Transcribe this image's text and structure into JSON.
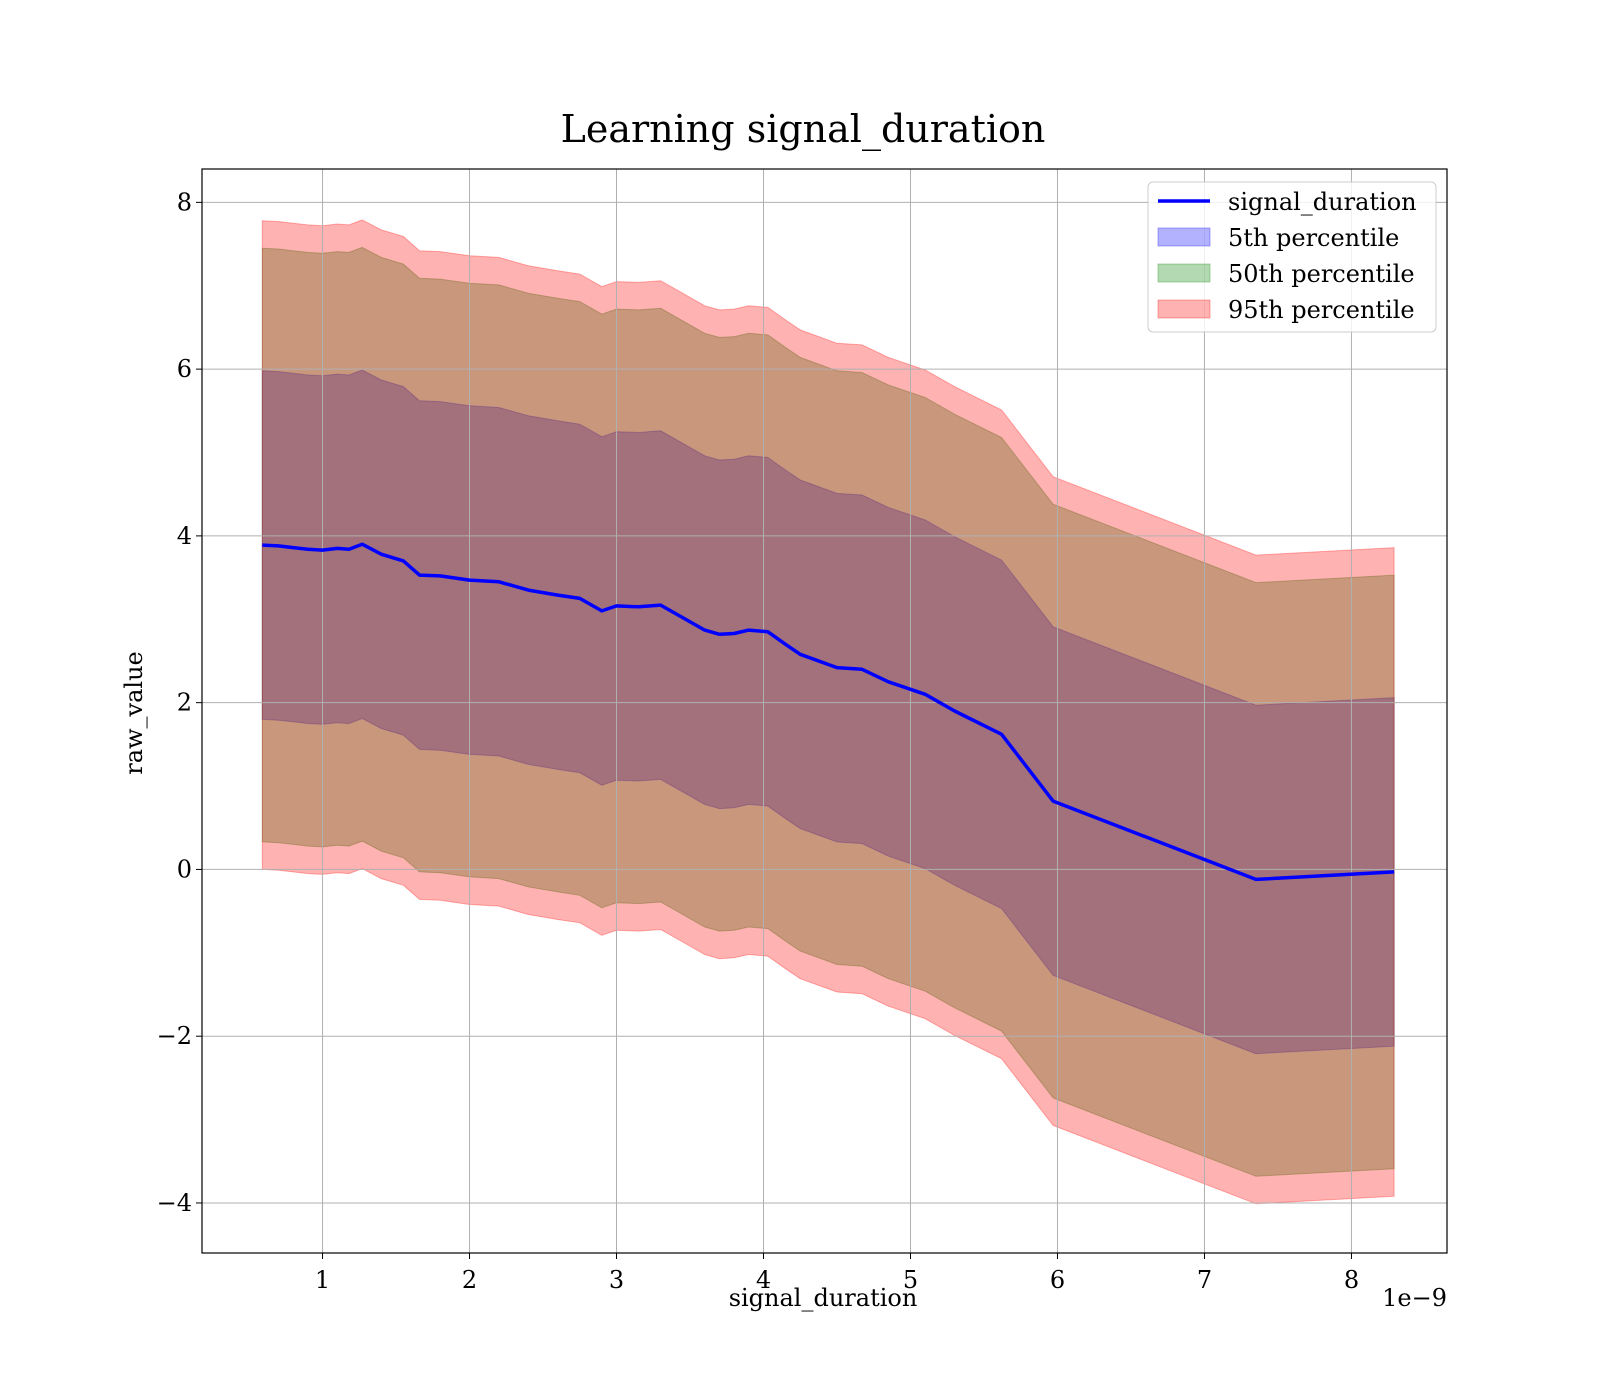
{
  "chart_data": {
    "type": "area",
    "title": "Learning signal_duration",
    "xlabel": "signal_duration",
    "ylabel": "raw_value",
    "x_offset_text": "1e−9",
    "xlim": [
      0.18,
      8.65
    ],
    "ylim": [
      -4.6,
      8.4
    ],
    "x_ticks": [
      1,
      2,
      3,
      4,
      5,
      6,
      7,
      8
    ],
    "x_tick_labels": [
      "1",
      "2",
      "3",
      "4",
      "5",
      "6",
      "7",
      "8"
    ],
    "y_ticks": [
      -4,
      -2,
      0,
      2,
      4,
      6,
      8
    ],
    "y_tick_labels": [
      "−4",
      "−2",
      "0",
      "2",
      "4",
      "6",
      "8"
    ],
    "grid": true,
    "legend_position": "top-right",
    "colors": {
      "line": "#0000ff",
      "band_5th": "#0000ff",
      "band_50th": "#008000",
      "band_95th": "#ff0000",
      "grid": "#b0b0b0"
    },
    "x": [
      0.59,
      0.7,
      0.8,
      0.9,
      1.0,
      1.1,
      1.18,
      1.27,
      1.4,
      1.55,
      1.66,
      1.8,
      2.0,
      2.2,
      2.4,
      2.6,
      2.75,
      2.9,
      3.0,
      3.15,
      3.3,
      3.45,
      3.6,
      3.7,
      3.8,
      3.9,
      4.03,
      4.15,
      4.25,
      4.5,
      4.67,
      4.85,
      5.1,
      5.3,
      5.62,
      5.97,
      7.35,
      8.29
    ],
    "series": [
      {
        "name": "signal_duration",
        "role": "line",
        "values": [
          3.89,
          3.88,
          3.86,
          3.84,
          3.83,
          3.85,
          3.84,
          3.9,
          3.78,
          3.7,
          3.53,
          3.52,
          3.47,
          3.45,
          3.35,
          3.29,
          3.25,
          3.1,
          3.16,
          3.15,
          3.17,
          3.02,
          2.87,
          2.82,
          2.83,
          2.87,
          2.85,
          2.7,
          2.58,
          2.42,
          2.4,
          2.25,
          2.1,
          1.9,
          1.62,
          0.82,
          -0.12,
          -0.03
        ]
      },
      {
        "name": "5th percentile",
        "role": "band",
        "lower": [
          1.8,
          1.79,
          1.77,
          1.75,
          1.74,
          1.76,
          1.75,
          1.81,
          1.69,
          1.61,
          1.44,
          1.43,
          1.38,
          1.36,
          1.26,
          1.2,
          1.16,
          1.01,
          1.07,
          1.06,
          1.08,
          0.93,
          0.78,
          0.73,
          0.74,
          0.78,
          0.76,
          0.61,
          0.49,
          0.33,
          0.31,
          0.16,
          0.01,
          -0.19,
          -0.47,
          -1.27,
          -2.21,
          -2.12
        ],
        "upper": [
          5.98,
          5.97,
          5.95,
          5.93,
          5.92,
          5.94,
          5.93,
          5.99,
          5.87,
          5.79,
          5.62,
          5.61,
          5.56,
          5.54,
          5.44,
          5.38,
          5.34,
          5.19,
          5.25,
          5.24,
          5.26,
          5.11,
          4.96,
          4.91,
          4.92,
          4.96,
          4.94,
          4.79,
          4.67,
          4.51,
          4.49,
          4.34,
          4.19,
          3.99,
          3.71,
          2.91,
          1.97,
          2.06
        ]
      },
      {
        "name": "50th percentile",
        "role": "band",
        "lower": [
          0.33,
          0.32,
          0.3,
          0.28,
          0.27,
          0.29,
          0.28,
          0.34,
          0.22,
          0.14,
          -0.03,
          -0.04,
          -0.09,
          -0.11,
          -0.21,
          -0.27,
          -0.31,
          -0.46,
          -0.4,
          -0.41,
          -0.39,
          -0.54,
          -0.69,
          -0.74,
          -0.73,
          -0.69,
          -0.71,
          -0.86,
          -0.98,
          -1.14,
          -1.16,
          -1.31,
          -1.46,
          -1.66,
          -1.94,
          -2.74,
          -3.68,
          -3.59
        ],
        "upper": [
          7.45,
          7.44,
          7.42,
          7.4,
          7.39,
          7.41,
          7.4,
          7.46,
          7.34,
          7.26,
          7.09,
          7.08,
          7.03,
          7.01,
          6.91,
          6.85,
          6.81,
          6.66,
          6.72,
          6.71,
          6.73,
          6.58,
          6.43,
          6.38,
          6.39,
          6.43,
          6.41,
          6.26,
          6.14,
          5.98,
          5.96,
          5.81,
          5.66,
          5.46,
          5.18,
          4.38,
          3.44,
          3.53
        ]
      },
      {
        "name": "95th percentile",
        "role": "band",
        "lower": [
          0.0,
          -0.01,
          -0.03,
          -0.05,
          -0.06,
          -0.04,
          -0.05,
          0.01,
          -0.11,
          -0.19,
          -0.36,
          -0.37,
          -0.42,
          -0.44,
          -0.54,
          -0.6,
          -0.64,
          -0.79,
          -0.73,
          -0.74,
          -0.72,
          -0.87,
          -1.02,
          -1.07,
          -1.06,
          -1.02,
          -1.04,
          -1.19,
          -1.31,
          -1.47,
          -1.49,
          -1.64,
          -1.79,
          -1.99,
          -2.27,
          -3.07,
          -4.01,
          -3.92
        ],
        "upper": [
          7.78,
          7.77,
          7.75,
          7.73,
          7.72,
          7.74,
          7.73,
          7.79,
          7.67,
          7.59,
          7.42,
          7.41,
          7.36,
          7.34,
          7.24,
          7.18,
          7.14,
          6.99,
          7.05,
          7.04,
          7.06,
          6.91,
          6.76,
          6.71,
          6.72,
          6.76,
          6.74,
          6.59,
          6.47,
          6.31,
          6.29,
          6.14,
          5.99,
          5.79,
          5.51,
          4.71,
          3.77,
          3.86
        ]
      }
    ],
    "legend": [
      "signal_duration",
      "5th percentile",
      "50th percentile",
      "95th percentile"
    ]
  }
}
